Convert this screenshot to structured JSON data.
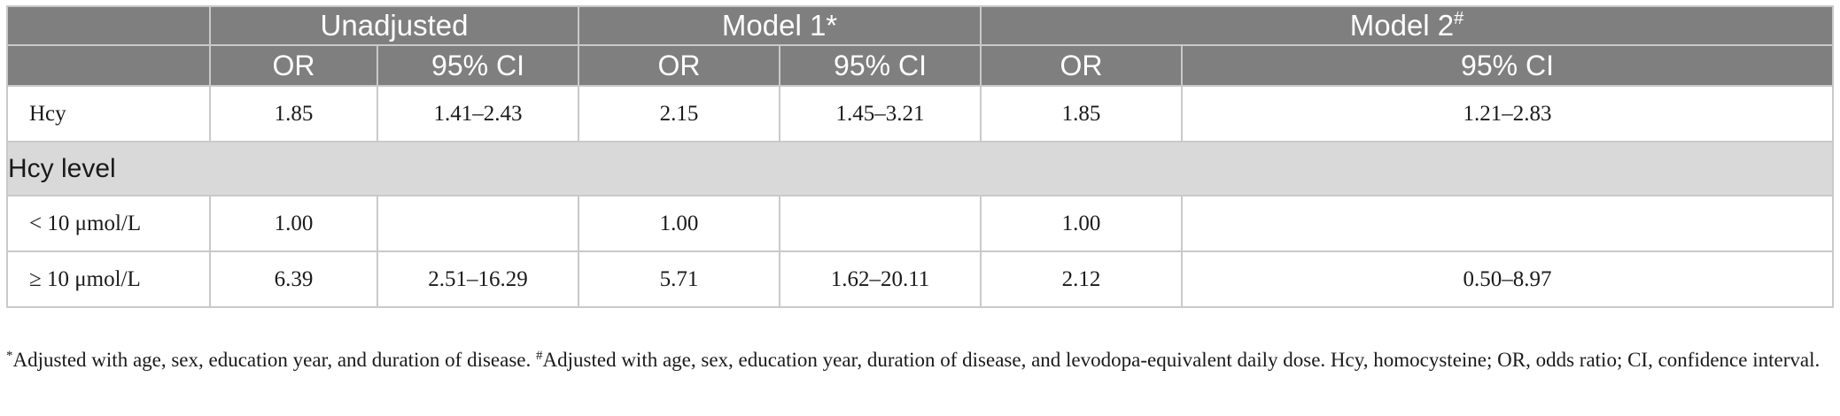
{
  "header": {
    "groups": [
      {
        "label": "Unadjusted",
        "mark": ""
      },
      {
        "label": "Model 1*",
        "mark": ""
      },
      {
        "label": "Model 2",
        "mark": "#"
      }
    ],
    "subcolumns": [
      "OR",
      "95% CI",
      "OR",
      "95% CI",
      "OR",
      "95% CI"
    ]
  },
  "rows": [
    {
      "label": "Hcy",
      "cells": [
        "1.85",
        "1.41–2.43",
        "2.15",
        "1.45–3.21",
        "1.85",
        "1.21–2.83"
      ]
    }
  ],
  "section": {
    "label": "Hcy level"
  },
  "section_rows": [
    {
      "label": "< 10 μmol/L",
      "cells": [
        "1.00",
        "",
        "1.00",
        "",
        "1.00",
        ""
      ]
    },
    {
      "label": "≥ 10 μmol/L",
      "cells": [
        "6.39",
        "2.51–16.29",
        "5.71",
        "1.62–20.11",
        "2.12",
        "0.50–8.97"
      ]
    }
  ],
  "footnote": {
    "mark1": "*",
    "text1": "Adjusted with age, sex, education year, and duration of disease. ",
    "mark2": "#",
    "text2": "Adjusted with age, sex, education year, duration of disease, and levodopa-equivalent daily dose. Hcy, homocysteine; OR, odds ratio; CI, confidence interval."
  }
}
